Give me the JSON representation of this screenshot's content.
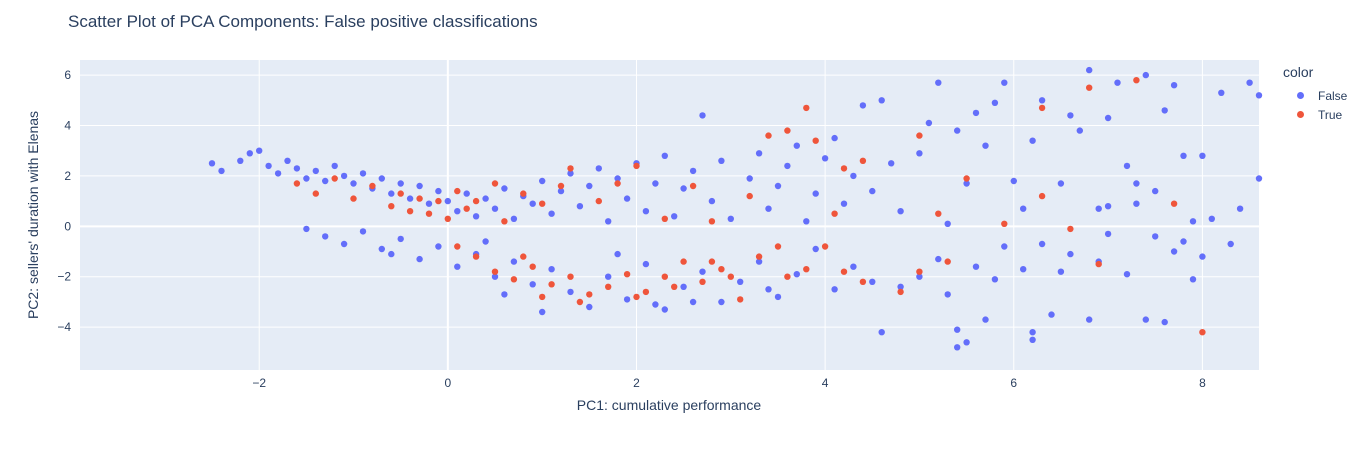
{
  "chart_data": {
    "type": "scatter",
    "title": "Scatter Plot of PCA Components: False positive classifications",
    "xlabel": "PC1: cumulative performance",
    "ylabel": "PC2: sellers' duration with Elenas",
    "xlim": [
      -3.9,
      8.6
    ],
    "ylim": [
      -5.7,
      6.6
    ],
    "xticks": [
      -2,
      0,
      2,
      4,
      6,
      8
    ],
    "yticks": [
      -4,
      -2,
      0,
      2,
      4,
      6
    ],
    "grid": true,
    "legend_title": "color",
    "legend_placement": "top-right",
    "series": [
      {
        "name": "False",
        "color": "#636efa",
        "points": [
          [
            -2.5,
            2.5
          ],
          [
            -2.4,
            2.2
          ],
          [
            -2.2,
            2.6
          ],
          [
            -2.1,
            2.9
          ],
          [
            -2.0,
            3.0
          ],
          [
            -1.9,
            2.4
          ],
          [
            -1.8,
            2.1
          ],
          [
            -1.7,
            2.6
          ],
          [
            -1.6,
            2.3
          ],
          [
            -1.5,
            1.9
          ],
          [
            -1.4,
            2.2
          ],
          [
            -1.3,
            1.8
          ],
          [
            -1.2,
            2.4
          ],
          [
            -1.1,
            2.0
          ],
          [
            -1.0,
            1.7
          ],
          [
            -0.9,
            2.1
          ],
          [
            -0.8,
            1.5
          ],
          [
            -0.7,
            1.9
          ],
          [
            -0.6,
            1.3
          ],
          [
            -0.5,
            1.7
          ],
          [
            -0.4,
            1.1
          ],
          [
            -0.3,
            1.6
          ],
          [
            -0.2,
            0.9
          ],
          [
            -0.1,
            1.4
          ],
          [
            0.0,
            1.0
          ],
          [
            0.1,
            0.6
          ],
          [
            0.2,
            1.3
          ],
          [
            0.3,
            0.4
          ],
          [
            0.4,
            1.1
          ],
          [
            0.5,
            0.7
          ],
          [
            0.6,
            1.5
          ],
          [
            0.7,
            0.3
          ],
          [
            0.8,
            1.2
          ],
          [
            0.9,
            0.9
          ],
          [
            1.0,
            1.8
          ],
          [
            1.1,
            0.5
          ],
          [
            1.2,
            1.4
          ],
          [
            1.3,
            2.1
          ],
          [
            1.4,
            0.8
          ],
          [
            1.5,
            1.6
          ],
          [
            1.6,
            2.3
          ],
          [
            1.7,
            0.2
          ],
          [
            1.8,
            1.9
          ],
          [
            1.9,
            1.1
          ],
          [
            2.0,
            2.5
          ],
          [
            2.1,
            0.6
          ],
          [
            2.2,
            1.7
          ],
          [
            2.3,
            2.8
          ],
          [
            2.4,
            0.4
          ],
          [
            2.5,
            1.5
          ],
          [
            2.6,
            2.2
          ],
          [
            2.7,
            4.4
          ],
          [
            2.8,
            1.0
          ],
          [
            2.9,
            2.6
          ],
          [
            3.0,
            0.3
          ],
          [
            3.2,
            1.9
          ],
          [
            3.3,
            2.9
          ],
          [
            3.4,
            0.7
          ],
          [
            3.5,
            1.6
          ],
          [
            3.6,
            2.4
          ],
          [
            3.7,
            3.2
          ],
          [
            3.8,
            0.2
          ],
          [
            3.9,
            1.3
          ],
          [
            4.0,
            2.7
          ],
          [
            4.1,
            3.5
          ],
          [
            4.2,
            0.9
          ],
          [
            4.3,
            2.0
          ],
          [
            4.4,
            4.8
          ],
          [
            4.5,
            1.4
          ],
          [
            4.6,
            5.0
          ],
          [
            4.7,
            2.5
          ],
          [
            4.8,
            0.6
          ],
          [
            5.0,
            2.9
          ],
          [
            5.1,
            4.1
          ],
          [
            5.2,
            5.7
          ],
          [
            5.3,
            0.1
          ],
          [
            5.4,
            3.8
          ],
          [
            5.5,
            1.7
          ],
          [
            5.6,
            4.5
          ],
          [
            5.7,
            3.2
          ],
          [
            5.8,
            4.9
          ],
          [
            5.9,
            5.7
          ],
          [
            6.0,
            1.8
          ],
          [
            6.1,
            0.7
          ],
          [
            6.2,
            3.4
          ],
          [
            6.3,
            5.0
          ],
          [
            6.5,
            1.7
          ],
          [
            6.6,
            4.4
          ],
          [
            6.7,
            3.8
          ],
          [
            6.8,
            6.2
          ],
          [
            6.9,
            0.7
          ],
          [
            7.0,
            4.3
          ],
          [
            7.1,
            5.7
          ],
          [
            7.2,
            2.4
          ],
          [
            7.3,
            0.9
          ],
          [
            7.4,
            6.0
          ],
          [
            7.5,
            1.4
          ],
          [
            7.6,
            4.6
          ],
          [
            7.7,
            5.6
          ],
          [
            7.8,
            2.8
          ],
          [
            7.9,
            0.2
          ],
          [
            8.0,
            2.8
          ],
          [
            8.1,
            0.3
          ],
          [
            8.2,
            5.3
          ],
          [
            8.4,
            0.7
          ],
          [
            8.5,
            5.7
          ],
          [
            8.6,
            1.9
          ],
          [
            8.6,
            5.2
          ],
          [
            7.3,
            1.7
          ],
          [
            7.0,
            0.8
          ],
          [
            -1.5,
            -0.1
          ],
          [
            -1.3,
            -0.4
          ],
          [
            -1.1,
            -0.7
          ],
          [
            -0.9,
            -0.2
          ],
          [
            -0.7,
            -0.9
          ],
          [
            -0.5,
            -0.5
          ],
          [
            -0.3,
            -1.3
          ],
          [
            -0.1,
            -0.8
          ],
          [
            0.1,
            -1.6
          ],
          [
            0.3,
            -1.1
          ],
          [
            0.5,
            -2.0
          ],
          [
            0.7,
            -1.4
          ],
          [
            0.9,
            -2.3
          ],
          [
            1.1,
            -1.7
          ],
          [
            1.3,
            -2.6
          ],
          [
            1.5,
            -3.2
          ],
          [
            1.7,
            -2.0
          ],
          [
            1.9,
            -2.9
          ],
          [
            2.1,
            -1.5
          ],
          [
            2.3,
            -3.3
          ],
          [
            2.5,
            -2.4
          ],
          [
            2.7,
            -1.8
          ],
          [
            2.9,
            -3.0
          ],
          [
            3.1,
            -2.2
          ],
          [
            3.3,
            -1.4
          ],
          [
            3.5,
            -2.8
          ],
          [
            3.7,
            -1.9
          ],
          [
            3.9,
            -0.9
          ],
          [
            4.1,
            -2.5
          ],
          [
            4.3,
            -1.6
          ],
          [
            4.5,
            -2.2
          ],
          [
            4.6,
            -4.2
          ],
          [
            4.8,
            -2.4
          ],
          [
            5.0,
            -2.0
          ],
          [
            5.2,
            -1.3
          ],
          [
            5.3,
            -2.7
          ],
          [
            5.4,
            -4.1
          ],
          [
            5.5,
            -4.6
          ],
          [
            5.6,
            -1.6
          ],
          [
            5.7,
            -3.7
          ],
          [
            5.8,
            -2.1
          ],
          [
            5.9,
            -0.8
          ],
          [
            6.1,
            -1.7
          ],
          [
            6.2,
            -4.2
          ],
          [
            6.3,
            -0.7
          ],
          [
            6.4,
            -3.5
          ],
          [
            6.5,
            -1.8
          ],
          [
            6.6,
            -1.1
          ],
          [
            6.8,
            -3.7
          ],
          [
            6.9,
            -1.4
          ],
          [
            7.0,
            -0.3
          ],
          [
            7.2,
            -1.9
          ],
          [
            7.4,
            -3.7
          ],
          [
            7.5,
            -0.4
          ],
          [
            7.6,
            -3.8
          ],
          [
            7.7,
            -1.0
          ],
          [
            7.8,
            -0.6
          ],
          [
            7.9,
            -2.1
          ],
          [
            8.0,
            -1.2
          ],
          [
            8.3,
            -0.7
          ],
          [
            5.4,
            -4.8
          ],
          [
            6.2,
            -4.5
          ],
          [
            2.2,
            -3.1
          ],
          [
            1.0,
            -3.4
          ],
          [
            0.6,
            -2.7
          ],
          [
            2.6,
            -3.0
          ],
          [
            3.4,
            -2.5
          ],
          [
            1.8,
            -1.1
          ],
          [
            0.4,
            -0.6
          ],
          [
            -0.6,
            -1.1
          ]
        ]
      },
      {
        "name": "True",
        "color": "#ef553b",
        "points": [
          [
            -1.6,
            1.7
          ],
          [
            -1.4,
            1.3
          ],
          [
            -1.2,
            1.9
          ],
          [
            -1.0,
            1.1
          ],
          [
            -0.8,
            1.6
          ],
          [
            -0.6,
            0.8
          ],
          [
            -0.5,
            1.3
          ],
          [
            -0.4,
            0.6
          ],
          [
            -0.3,
            1.1
          ],
          [
            -0.2,
            0.5
          ],
          [
            -0.1,
            1.0
          ],
          [
            0.0,
            0.3
          ],
          [
            0.1,
            1.4
          ],
          [
            0.2,
            0.7
          ],
          [
            0.3,
            1.0
          ],
          [
            0.5,
            1.7
          ],
          [
            0.6,
            0.2
          ],
          [
            0.8,
            1.3
          ],
          [
            1.0,
            0.9
          ],
          [
            1.2,
            1.6
          ],
          [
            1.3,
            2.3
          ],
          [
            1.6,
            1.0
          ],
          [
            1.8,
            1.7
          ],
          [
            2.0,
            2.4
          ],
          [
            2.3,
            0.3
          ],
          [
            2.6,
            1.6
          ],
          [
            2.8,
            0.2
          ],
          [
            3.2,
            1.2
          ],
          [
            3.4,
            3.6
          ],
          [
            3.6,
            3.8
          ],
          [
            3.8,
            4.7
          ],
          [
            3.9,
            3.4
          ],
          [
            4.1,
            0.5
          ],
          [
            4.2,
            2.3
          ],
          [
            4.4,
            2.6
          ],
          [
            4.8,
            -2.6
          ],
          [
            5.0,
            3.6
          ],
          [
            5.2,
            0.5
          ],
          [
            5.5,
            1.9
          ],
          [
            5.9,
            0.1
          ],
          [
            6.3,
            1.2
          ],
          [
            6.3,
            4.7
          ],
          [
            6.8,
            5.5
          ],
          [
            7.3,
            5.8
          ],
          [
            7.7,
            0.9
          ],
          [
            8.0,
            -4.2
          ],
          [
            6.6,
            -0.1
          ],
          [
            6.9,
            -1.5
          ],
          [
            5.3,
            -1.4
          ],
          [
            5.0,
            -1.8
          ],
          [
            0.1,
            -0.8
          ],
          [
            0.3,
            -1.2
          ],
          [
            0.5,
            -1.8
          ],
          [
            0.7,
            -2.1
          ],
          [
            0.9,
            -1.6
          ],
          [
            1.1,
            -2.3
          ],
          [
            1.3,
            -2.0
          ],
          [
            1.5,
            -2.7
          ],
          [
            1.7,
            -2.4
          ],
          [
            1.9,
            -1.9
          ],
          [
            2.1,
            -2.6
          ],
          [
            2.3,
            -2.0
          ],
          [
            2.5,
            -1.4
          ],
          [
            2.7,
            -2.2
          ],
          [
            2.9,
            -1.7
          ],
          [
            3.1,
            -2.9
          ],
          [
            3.3,
            -1.2
          ],
          [
            3.5,
            -0.8
          ],
          [
            3.8,
            -1.7
          ],
          [
            4.0,
            -0.8
          ],
          [
            4.2,
            -1.8
          ],
          [
            4.4,
            -2.2
          ],
          [
            1.0,
            -2.8
          ],
          [
            1.4,
            -3.0
          ],
          [
            2.0,
            -2.8
          ],
          [
            2.4,
            -2.4
          ],
          [
            2.8,
            -1.4
          ],
          [
            3.0,
            -2.0
          ],
          [
            3.6,
            -2.0
          ],
          [
            0.8,
            -1.2
          ]
        ]
      }
    ]
  }
}
